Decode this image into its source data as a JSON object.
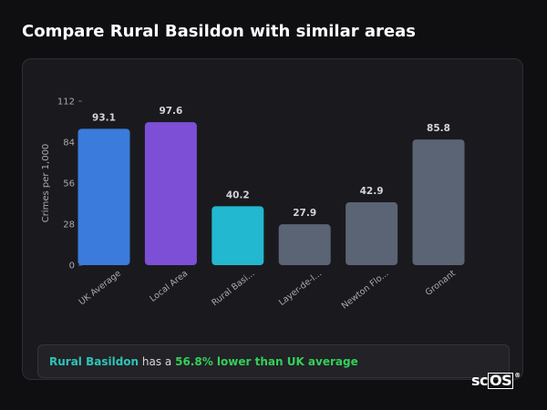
{
  "page": {
    "title": "Compare Rural Basildon with similar areas"
  },
  "chart_data": {
    "type": "bar",
    "ylabel": "Crimes per 1,000",
    "xlabel": "",
    "ylim": [
      0,
      112
    ],
    "yticks": [
      0,
      28,
      56,
      84,
      112
    ],
    "grid": false,
    "categories": [
      "UK Average",
      "Local Area",
      "Rural Basi...",
      "Layer-de-l...",
      "Newton Flo...",
      "Gronant"
    ],
    "values": [
      93.1,
      97.6,
      40.2,
      27.9,
      42.9,
      85.8
    ],
    "value_labels": [
      "93.1",
      "97.6",
      "40.2",
      "27.9",
      "42.9",
      "85.8"
    ],
    "colors": [
      "#3a7bdc",
      "#7c4fd6",
      "#22b8cf",
      "#5b6474",
      "#5b6474",
      "#5b6474"
    ]
  },
  "summary": {
    "area": "Rural Basildon",
    "middle": " has a ",
    "comparison": "56.8% lower than UK average"
  },
  "logo": {
    "prefix": "sc",
    "boxed": "OS",
    "mark": "®"
  }
}
